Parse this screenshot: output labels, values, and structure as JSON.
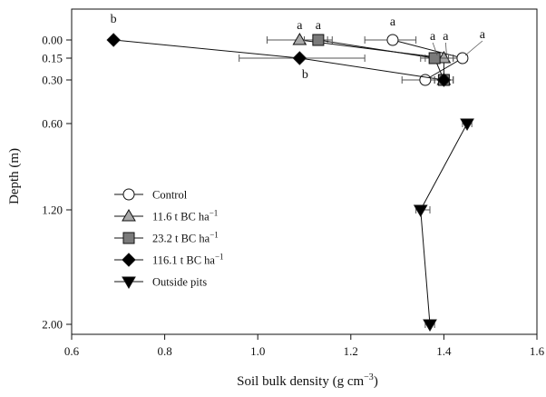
{
  "chart_data": {
    "type": "scatter",
    "title": "",
    "xlabel": "Soil bulk density (g cm",
    "xlabel_exp": "−3",
    "xlabel_close": ")",
    "ylabel": "Depth (m)",
    "xlim": [
      0.6,
      1.6
    ],
    "x_ticks": [
      0.6,
      0.8,
      1.0,
      1.2,
      1.4,
      1.6
    ],
    "x_tick_labels": [
      "0.6",
      "0.8",
      "1.0",
      "1.2",
      "1.4",
      "1.6"
    ],
    "y_ticks": [
      0.0,
      0.15,
      0.3,
      0.6,
      1.2,
      2.0
    ],
    "y_tick_labels": [
      "0.00",
      "0.15",
      "0.30",
      "0.60",
      "1.20",
      "2.00"
    ],
    "ylim": [
      -0.2,
      2.0
    ],
    "y_inverted": true,
    "grid": false,
    "legend_position": "bottom-left",
    "series": [
      {
        "name": "Control",
        "marker": "circle-open",
        "fill": "#ffffff",
        "points": [
          {
            "depth": 0.0,
            "density": 1.29,
            "err_low": 1.23,
            "err_high": 1.34,
            "label": "a"
          },
          {
            "depth": 0.15,
            "density": 1.44,
            "err_low": 1.42,
            "err_high": 1.45,
            "label": "a"
          },
          {
            "depth": 0.3,
            "density": 1.36,
            "err_low": 1.31,
            "err_high": 1.41,
            "label": ""
          }
        ]
      },
      {
        "name": "11.6 t BC ha",
        "name_exp": "−1",
        "marker": "triangle-up",
        "fill": "#a8a8a8",
        "points": [
          {
            "depth": 0.0,
            "density": 1.09,
            "err_low": 1.02,
            "err_high": 1.15,
            "label": "a"
          },
          {
            "depth": 0.15,
            "density": 1.4,
            "err_low": 1.36,
            "err_high": 1.42,
            "label": "a"
          },
          {
            "depth": 0.3,
            "density": 1.4,
            "err_low": 1.38,
            "err_high": 1.42,
            "label": ""
          }
        ]
      },
      {
        "name": "23.2 t BC ha",
        "name_exp": "−1",
        "marker": "square",
        "fill": "#7a7a7a",
        "points": [
          {
            "depth": 0.0,
            "density": 1.13,
            "err_low": 1.1,
            "err_high": 1.16,
            "label": "a"
          },
          {
            "depth": 0.15,
            "density": 1.38,
            "err_low": 1.35,
            "err_high": 1.41,
            "label": "a"
          },
          {
            "depth": 0.3,
            "density": 1.4,
            "err_low": 1.38,
            "err_high": 1.42,
            "label": ""
          }
        ]
      },
      {
        "name": "116.1 t BC ha",
        "name_exp": "−1",
        "marker": "diamond",
        "fill": "#000000",
        "points": [
          {
            "depth": 0.0,
            "density": 0.69,
            "err_low": 0.69,
            "err_high": 0.69,
            "label": "b"
          },
          {
            "depth": 0.15,
            "density": 1.09,
            "err_low": 0.96,
            "err_high": 1.23,
            "label": "b"
          },
          {
            "depth": 0.3,
            "density": 1.4,
            "err_low": 1.38,
            "err_high": 1.42,
            "label": ""
          }
        ]
      },
      {
        "name": "Outside pits",
        "marker": "triangle-down",
        "fill": "#000000",
        "points": [
          {
            "depth": 0.6,
            "density": 1.45,
            "err_low": 1.44,
            "err_high": 1.46,
            "label": ""
          },
          {
            "depth": 1.2,
            "density": 1.35,
            "err_low": 1.34,
            "err_high": 1.37,
            "label": ""
          },
          {
            "depth": 2.0,
            "density": 1.37,
            "err_low": 1.36,
            "err_high": 1.38,
            "label": ""
          }
        ]
      }
    ]
  }
}
